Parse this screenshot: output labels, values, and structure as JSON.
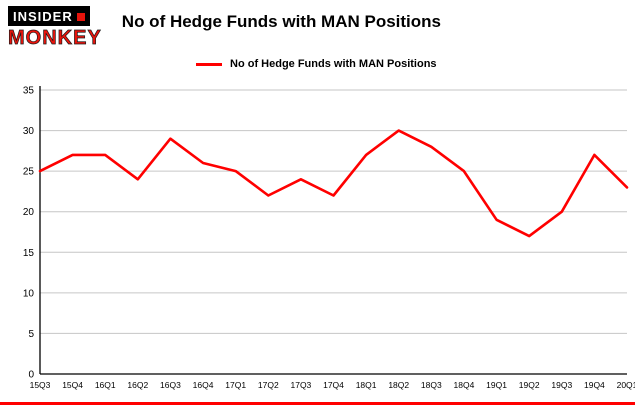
{
  "brand": {
    "line1": "INSIDER",
    "line2": "MONKEY"
  },
  "header": {
    "title": "No of Hedge Funds with MAN Positions"
  },
  "legend": {
    "label": "No of Hedge Funds with MAN Positions"
  },
  "colors": {
    "line": "#ff0000",
    "grid": "#c6c6c6",
    "axis": "#000000",
    "tick_text": "#000000",
    "bottom_bar": "#ff0000"
  },
  "chart_data": {
    "type": "line",
    "title": "No of Hedge Funds with MAN Positions",
    "categories": [
      "15Q3",
      "15Q4",
      "16Q1",
      "16Q2",
      "16Q3",
      "16Q4",
      "17Q1",
      "17Q2",
      "17Q3",
      "17Q4",
      "18Q1",
      "18Q2",
      "18Q3",
      "18Q4",
      "19Q1",
      "19Q2",
      "19Q3",
      "19Q4",
      "20Q1"
    ],
    "values": [
      25,
      27,
      27,
      24,
      29,
      26,
      25,
      22,
      24,
      22,
      27,
      30,
      28,
      25,
      19,
      17,
      20,
      27,
      23
    ],
    "xlabel": "",
    "ylabel": "",
    "ylim": [
      0,
      35
    ],
    "yticks": [
      0,
      5,
      10,
      15,
      20,
      25,
      30,
      35
    ],
    "grid": true,
    "legend_position": "top-left"
  }
}
